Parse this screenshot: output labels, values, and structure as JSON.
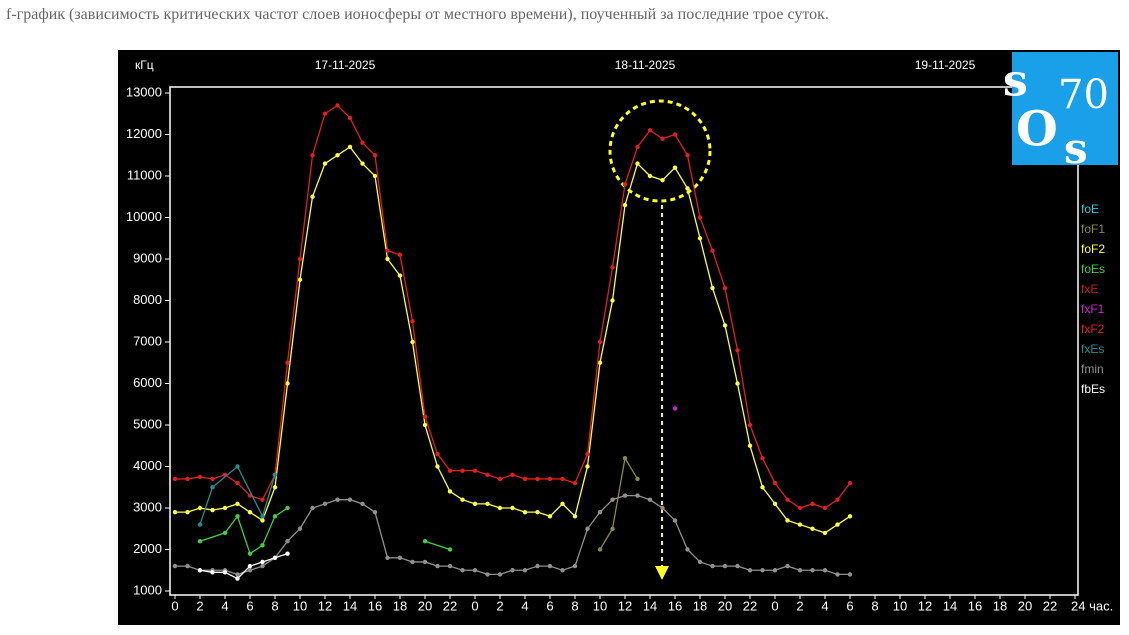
{
  "caption": "f-график (зависимость критических частот слоев ионосферы от местного времени), поученный за последние трое суток.",
  "logo": {
    "s1": "s",
    "n": "70",
    "o": "O",
    "s2": "s"
  },
  "chart_data": {
    "type": "line",
    "y_label": "кГц",
    "dates": [
      "17-11-2025",
      "18-11-2025",
      "19-11-2025"
    ],
    "xlim": [
      0,
      72
    ],
    "ylim": [
      1000,
      13000
    ],
    "yticks": [
      1000,
      2000,
      3000,
      4000,
      5000,
      6000,
      7000,
      8000,
      9000,
      10000,
      11000,
      12000,
      13000
    ],
    "xticks": [
      0,
      {
        "value": 2,
        "label": "2"
      },
      {
        "value": 4,
        "label": "4"
      },
      {
        "value": 6,
        "label": "6"
      },
      {
        "value": 8,
        "label": "8"
      },
      {
        "value": 10,
        "label": "10"
      },
      {
        "value": 12,
        "label": "12"
      },
      {
        "value": 14,
        "label": "14"
      },
      {
        "value": 16,
        "label": "16"
      },
      {
        "value": 18,
        "label": "18"
      },
      {
        "value": 20,
        "label": "20"
      },
      {
        "value": 22,
        "label": "22"
      },
      {
        "value": 24,
        "label": "0"
      },
      {
        "value": 26,
        "label": "2"
      },
      {
        "value": 28,
        "label": "4"
      },
      {
        "value": 30,
        "label": "6"
      },
      {
        "value": 32,
        "label": "8"
      },
      {
        "value": 34,
        "label": "10"
      },
      {
        "value": 36,
        "label": "12"
      },
      {
        "value": 38,
        "label": "14"
      },
      {
        "value": 40,
        "label": "16"
      },
      {
        "value": 42,
        "label": "18"
      },
      {
        "value": 44,
        "label": "20"
      },
      {
        "value": 46,
        "label": "22"
      },
      {
        "value": 48,
        "label": "0"
      },
      {
        "value": 50,
        "label": "2"
      },
      {
        "value": 52,
        "label": "4"
      },
      {
        "value": 54,
        "label": "6"
      },
      {
        "value": 56,
        "label": "8"
      },
      {
        "value": 58,
        "label": "10"
      },
      {
        "value": 60,
        "label": "12"
      },
      {
        "value": 62,
        "label": "14"
      },
      {
        "value": 64,
        "label": "16"
      },
      {
        "value": 66,
        "label": "18"
      },
      {
        "value": 68,
        "label": "20"
      },
      {
        "value": 70,
        "label": "22"
      },
      {
        "value": 72,
        "label": "24 час."
      }
    ],
    "series": [
      {
        "name": "foE",
        "color": "#30c8d8",
        "x": [],
        "values": []
      },
      {
        "name": "foF1",
        "color": "#8a8a40",
        "x": [
          34,
          35,
          36,
          37
        ],
        "values": [
          2000,
          2500,
          4200,
          3700
        ]
      },
      {
        "name": "foF2",
        "color": "#ffff40",
        "x": [
          0,
          1,
          2,
          3,
          4,
          5,
          6,
          7,
          8,
          9,
          10,
          11,
          12,
          13,
          14,
          15,
          16,
          17,
          18,
          19,
          20,
          21,
          22,
          23,
          24,
          25,
          26,
          27,
          28,
          29,
          30,
          31,
          32,
          33,
          34,
          35,
          36,
          37,
          38,
          39,
          40,
          41,
          42,
          43,
          44,
          45,
          46,
          47,
          48,
          49,
          50,
          51,
          52,
          53,
          54
        ],
        "values": [
          2900,
          2900,
          3000,
          2950,
          3000,
          3100,
          2900,
          2700,
          3500,
          6000,
          8500,
          10500,
          11300,
          11500,
          11700,
          11300,
          11000,
          9000,
          8600,
          7000,
          5000,
          4000,
          3400,
          3200,
          3100,
          3100,
          3000,
          3000,
          2900,
          2900,
          2800,
          3100,
          2800,
          4000,
          6500,
          8000,
          10300,
          11300,
          11000,
          10900,
          11200,
          10700,
          9500,
          8300,
          7400,
          6000,
          4500,
          3500,
          3100,
          2700,
          2600,
          2500,
          2400,
          2600,
          2800
        ]
      },
      {
        "name": "foEs",
        "color": "#40d040",
        "x": [
          2,
          4,
          5,
          6,
          7,
          8,
          9,
          20,
          22
        ],
        "values": [
          2200,
          2400,
          2800,
          1900,
          2100,
          2800,
          3000,
          2200,
          2000
        ]
      },
      {
        "name": "fxE",
        "color": "#c02020",
        "x": [],
        "values": []
      },
      {
        "name": "fxF1",
        "color": "#d020d0",
        "x": [
          40
        ],
        "values": [
          5400
        ]
      },
      {
        "name": "fxF2",
        "color": "#e02020",
        "x": [
          0,
          1,
          2,
          3,
          4,
          5,
          6,
          7,
          8,
          9,
          10,
          11,
          12,
          13,
          14,
          15,
          16,
          17,
          18,
          19,
          20,
          21,
          22,
          23,
          24,
          25,
          26,
          27,
          28,
          29,
          30,
          31,
          32,
          33,
          34,
          35,
          36,
          37,
          38,
          39,
          40,
          41,
          42,
          43,
          44,
          45,
          46,
          47,
          48,
          49,
          50,
          51,
          52,
          53,
          54
        ],
        "values": [
          3700,
          3700,
          3750,
          3700,
          3800,
          3600,
          3300,
          3200,
          3800,
          6500,
          9000,
          11500,
          12500,
          12700,
          12400,
          11800,
          11500,
          9200,
          9100,
          7500,
          5200,
          4300,
          3900,
          3900,
          3900,
          3800,
          3700,
          3800,
          3700,
          3700,
          3700,
          3700,
          3600,
          4300,
          7000,
          8800,
          10800,
          11700,
          12100,
          11900,
          12000,
          11500,
          10000,
          9200,
          8300,
          6800,
          5000,
          4200,
          3600,
          3200,
          3000,
          3100,
          3000,
          3200,
          3600
        ]
      },
      {
        "name": "fxEs",
        "color": "#209090",
        "x": [
          2,
          3,
          5,
          7,
          8
        ],
        "values": [
          2600,
          3500,
          4000,
          2800,
          3800
        ]
      },
      {
        "name": "fmin",
        "color": "#909090",
        "x": [
          0,
          1,
          2,
          3,
          4,
          5,
          6,
          7,
          8,
          9,
          10,
          11,
          12,
          13,
          14,
          15,
          16,
          17,
          18,
          19,
          20,
          21,
          22,
          23,
          24,
          25,
          26,
          27,
          28,
          29,
          30,
          31,
          32,
          33,
          34,
          35,
          36,
          37,
          38,
          39,
          40,
          41,
          42,
          43,
          44,
          45,
          46,
          47,
          48,
          49,
          50,
          51,
          52,
          53,
          54
        ],
        "values": [
          1600,
          1600,
          1500,
          1500,
          1500,
          1400,
          1500,
          1600,
          1800,
          2200,
          2500,
          3000,
          3100,
          3200,
          3200,
          3100,
          2900,
          1800,
          1800,
          1700,
          1700,
          1600,
          1600,
          1500,
          1500,
          1400,
          1400,
          1500,
          1500,
          1600,
          1600,
          1500,
          1600,
          2500,
          2900,
          3200,
          3300,
          3300,
          3200,
          3000,
          2700,
          2000,
          1700,
          1600,
          1600,
          1600,
          1500,
          1500,
          1500,
          1600,
          1500,
          1500,
          1500,
          1400,
          1400
        ]
      },
      {
        "name": "fbEs",
        "color": "#ffffff",
        "x": [
          2,
          3,
          4,
          5,
          6,
          7,
          8,
          9
        ],
        "values": [
          1500,
          1450,
          1450,
          1300,
          1600,
          1700,
          1800,
          1900
        ]
      }
    ]
  }
}
